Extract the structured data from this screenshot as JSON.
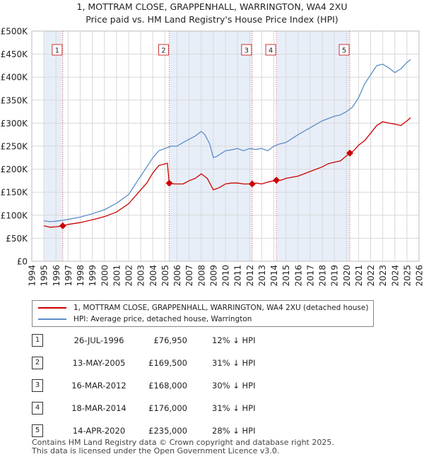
{
  "title": {
    "line1": "1, MOTTRAM CLOSE, GRAPPENHALL, WARRINGTON, WA4 2XU",
    "line2": "Price paid vs. HM Land Registry's House Price Index (HPI)"
  },
  "colors": {
    "price": "#cc0000",
    "hpi": "#5b8dc9",
    "shade": "#e8eef8",
    "grid": "#d8d8d8",
    "marker_line": "#e06060"
  },
  "chart_data": {
    "type": "line",
    "title": "Price paid vs. HM Land Registry's House Price Index (HPI)",
    "xlabel": "",
    "ylabel": "",
    "xlim": [
      1994,
      2026
    ],
    "ylim": [
      0,
      500000
    ],
    "x_ticks": [
      "1994",
      "1995",
      "1996",
      "1997",
      "1998",
      "1999",
      "2000",
      "2001",
      "2002",
      "2003",
      "2004",
      "2005",
      "2006",
      "2007",
      "2008",
      "2009",
      "2010",
      "2011",
      "2012",
      "2013",
      "2014",
      "2015",
      "2016",
      "2017",
      "2018",
      "2019",
      "2020",
      "2021",
      "2022",
      "2023",
      "2024",
      "2025",
      "2026"
    ],
    "y_ticks": [
      {
        "value": 0,
        "label": "£0"
      },
      {
        "value": 50000,
        "label": "£50K"
      },
      {
        "value": 100000,
        "label": "£100K"
      },
      {
        "value": 150000,
        "label": "£150K"
      },
      {
        "value": 200000,
        "label": "£200K"
      },
      {
        "value": 250000,
        "label": "£250K"
      },
      {
        "value": 300000,
        "label": "£300K"
      },
      {
        "value": 350000,
        "label": "£350K"
      },
      {
        "value": 400000,
        "label": "£400K"
      },
      {
        "value": 450000,
        "label": "£450K"
      },
      {
        "value": 500000,
        "label": "£500K"
      }
    ],
    "series": [
      {
        "name": "1, MOTTRAM CLOSE, GRAPPENHALL, WARRINGTON, WA4 2XU (detached house)",
        "x": [
          1995.0,
          1995.5,
          1996.0,
          1996.56,
          1997.0,
          1998.0,
          1999.0,
          2000.0,
          2001.0,
          2002.0,
          2003.0,
          2003.5,
          2004.0,
          2004.5,
          2005.2,
          2005.36,
          2005.8,
          2006.5,
          2007.0,
          2007.5,
          2008.0,
          2008.5,
          2009.0,
          2009.5,
          2010.0,
          2010.5,
          2011.0,
          2011.5,
          2012.21,
          2012.5,
          2013.0,
          2013.5,
          2014.21,
          2014.6,
          2015.0,
          2016.0,
          2017.0,
          2018.0,
          2018.5,
          2019.0,
          2019.5,
          2020.28,
          2020.6,
          2021.0,
          2021.5,
          2022.0,
          2022.5,
          2023.0,
          2023.5,
          2024.0,
          2024.5,
          2025.0,
          2025.3
        ],
        "values": [
          77000,
          74000,
          75000,
          76950,
          80000,
          84000,
          90000,
          97000,
          107000,
          125000,
          155000,
          170000,
          192000,
          208000,
          213000,
          169500,
          168000,
          168000,
          175000,
          180000,
          190000,
          180000,
          155000,
          160000,
          168000,
          170000,
          170000,
          168000,
          168000,
          170000,
          168000,
          172000,
          176000,
          176000,
          180000,
          185000,
          195000,
          205000,
          212000,
          215000,
          218000,
          235000,
          240000,
          252000,
          262000,
          278000,
          295000,
          303000,
          300000,
          298000,
          295000,
          305000,
          312000
        ]
      },
      {
        "name": "HPI: Average price, detached house, Warrington",
        "x": [
          1995.0,
          1995.5,
          1996.0,
          1997.0,
          1998.0,
          1999.0,
          2000.0,
          2001.0,
          2002.0,
          2003.0,
          2003.5,
          2004.0,
          2004.5,
          2005.0,
          2005.5,
          2006.0,
          2006.5,
          2007.0,
          2007.5,
          2008.0,
          2008.3,
          2008.7,
          2009.0,
          2009.3,
          2009.7,
          2010.0,
          2010.5,
          2011.0,
          2011.5,
          2012.0,
          2012.5,
          2013.0,
          2013.5,
          2014.0,
          2014.5,
          2015.0,
          2016.0,
          2017.0,
          2018.0,
          2019.0,
          2019.5,
          2020.0,
          2020.5,
          2021.0,
          2021.5,
          2022.0,
          2022.5,
          2023.0,
          2023.5,
          2024.0,
          2024.5,
          2025.0,
          2025.3
        ],
        "values": [
          88000,
          86000,
          87000,
          91000,
          96000,
          103000,
          112000,
          126000,
          145000,
          185000,
          205000,
          225000,
          240000,
          245000,
          250000,
          250000,
          258000,
          265000,
          272000,
          282000,
          275000,
          255000,
          225000,
          228000,
          235000,
          240000,
          242000,
          245000,
          240000,
          245000,
          243000,
          245000,
          240000,
          250000,
          255000,
          258000,
          275000,
          290000,
          305000,
          315000,
          318000,
          325000,
          335000,
          355000,
          385000,
          405000,
          425000,
          428000,
          420000,
          410000,
          418000,
          432000,
          438000
        ]
      }
    ],
    "sales": [
      {
        "num": "1",
        "x": 1996.56,
        "value": 76950
      },
      {
        "num": "2",
        "x": 2005.36,
        "value": 169500
      },
      {
        "num": "3",
        "x": 2012.21,
        "value": 168000
      },
      {
        "num": "4",
        "x": 2014.21,
        "value": 176000
      },
      {
        "num": "5",
        "x": 2020.28,
        "value": 235000
      }
    ],
    "shaded_ranges": [
      [
        1995.0,
        1996.56
      ],
      [
        2005.36,
        2012.21
      ],
      [
        2014.21,
        2020.28
      ]
    ]
  },
  "legend": {
    "price_label": "1, MOTTRAM CLOSE, GRAPPENHALL, WARRINGTON, WA4 2XU (detached house)",
    "hpi_label": "HPI: Average price, detached house, Warrington"
  },
  "sales_table": [
    {
      "num": "1",
      "date": "26-JUL-1996",
      "price": "£76,950",
      "hpi": "12% ↓ HPI"
    },
    {
      "num": "2",
      "date": "13-MAY-2005",
      "price": "£169,500",
      "hpi": "31% ↓ HPI"
    },
    {
      "num": "3",
      "date": "16-MAR-2012",
      "price": "£168,000",
      "hpi": "30% ↓ HPI"
    },
    {
      "num": "4",
      "date": "18-MAR-2014",
      "price": "£176,000",
      "hpi": "31% ↓ HPI"
    },
    {
      "num": "5",
      "date": "14-APR-2020",
      "price": "£235,000",
      "hpi": "28% ↓ HPI"
    }
  ],
  "footer": {
    "line1": "Contains HM Land Registry data © Crown copyright and database right 2025.",
    "line2": "This data is licensed under the Open Government Licence v3.0."
  }
}
